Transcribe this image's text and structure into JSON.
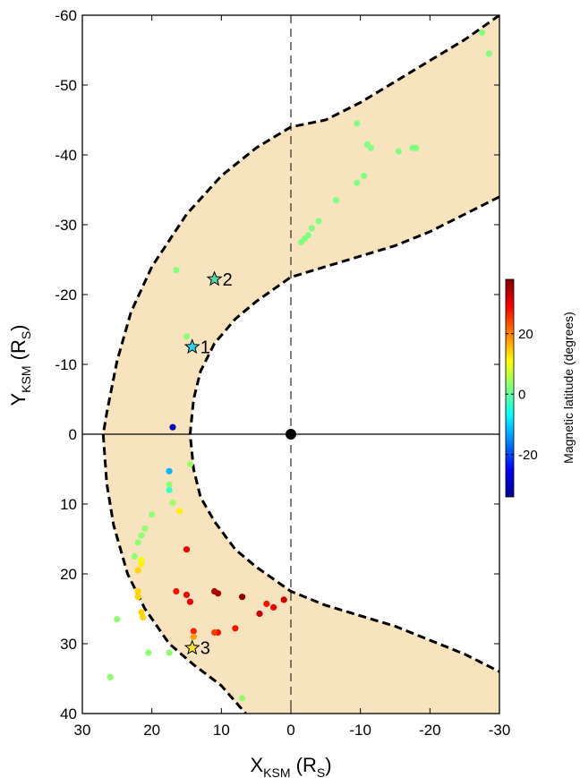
{
  "chart_data": {
    "type": "scatter",
    "x_axis": {
      "label_main": "X",
      "label_sub": "KSM",
      "label_unit_open": " (R",
      "label_unit_sub": "S",
      "label_unit_close": ")",
      "range": [
        30,
        -30
      ],
      "reversed": true,
      "ticks": [
        30,
        20,
        10,
        0,
        -10,
        -20,
        -30
      ]
    },
    "y_axis": {
      "label_main": "Y",
      "label_sub": "KSM",
      "label_unit_open": " (R",
      "label_unit_sub": "S",
      "label_unit_close": ")",
      "range": [
        -60,
        40
      ],
      "reversed": true,
      "ticks": [
        -60,
        -50,
        -40,
        -30,
        -20,
        -10,
        0,
        10,
        20,
        30,
        40
      ]
    },
    "grid": false,
    "reference_lines": {
      "x0_dashed_vertical": true,
      "y0_solid_horizontal": true
    },
    "planet_marker": {
      "x": 0,
      "y": 0,
      "color": "#000000"
    },
    "region_fill_color": "#f8e3bf",
    "boundary_color": "#000000",
    "outer_boundary": [
      [
        -30,
        -60
      ],
      [
        -25,
        -56.5
      ],
      [
        -20,
        -53.5
      ],
      [
        -15,
        -50.5
      ],
      [
        -10,
        -47.5
      ],
      [
        -5,
        -45
      ],
      [
        0,
        -44
      ],
      [
        5,
        -41
      ],
      [
        10,
        -37
      ],
      [
        15,
        -31.5
      ],
      [
        20,
        -24
      ],
      [
        23,
        -17.5
      ],
      [
        25,
        -10.5
      ],
      [
        26.5,
        -3
      ],
      [
        27,
        0
      ],
      [
        26.5,
        7
      ],
      [
        25.5,
        13
      ],
      [
        23.5,
        20
      ],
      [
        21,
        25
      ],
      [
        17.5,
        30
      ],
      [
        14,
        33
      ],
      [
        10,
        36
      ],
      [
        6.5,
        40
      ]
    ],
    "inner_boundary": [
      [
        -30,
        -34
      ],
      [
        -25,
        -31.5
      ],
      [
        -20,
        -29
      ],
      [
        -15,
        -27
      ],
      [
        -10,
        -25.5
      ],
      [
        -5,
        -24
      ],
      [
        0,
        -22.5
      ],
      [
        5,
        -19
      ],
      [
        8,
        -16.5
      ],
      [
        11,
        -13
      ],
      [
        13,
        -9
      ],
      [
        14,
        -5
      ],
      [
        14.5,
        0
      ],
      [
        14,
        5
      ],
      [
        13,
        9
      ],
      [
        11,
        12.5
      ],
      [
        8,
        16.5
      ],
      [
        5,
        19
      ],
      [
        0,
        22.5
      ],
      [
        -5,
        24.5
      ],
      [
        -10,
        26
      ],
      [
        -15,
        27.5
      ],
      [
        -20,
        29.5
      ],
      [
        -25,
        31.5
      ],
      [
        -30,
        34
      ]
    ],
    "points": [
      {
        "x": -27.5,
        "y": -57.5,
        "lat": 2
      },
      {
        "x": -28.5,
        "y": -54.5,
        "lat": 2
      },
      {
        "x": -9.5,
        "y": -44.5,
        "lat": 2
      },
      {
        "x": -11,
        "y": -41.5,
        "lat": 2
      },
      {
        "x": -11.5,
        "y": -41,
        "lat": 2
      },
      {
        "x": -15.5,
        "y": -40.5,
        "lat": 2
      },
      {
        "x": -17.5,
        "y": -41,
        "lat": 2
      },
      {
        "x": -18,
        "y": -41,
        "lat": 2
      },
      {
        "x": -10.5,
        "y": -37,
        "lat": 2
      },
      {
        "x": -9.5,
        "y": -36,
        "lat": 2
      },
      {
        "x": -6.5,
        "y": -33.5,
        "lat": 2
      },
      {
        "x": -4,
        "y": -30.5,
        "lat": 2
      },
      {
        "x": -3,
        "y": -29.5,
        "lat": 2
      },
      {
        "x": -2.5,
        "y": -28.5,
        "lat": 2
      },
      {
        "x": -2,
        "y": -28,
        "lat": 2
      },
      {
        "x": -1.5,
        "y": -27.5,
        "lat": 2
      },
      {
        "x": 16.5,
        "y": -23.5,
        "lat": 2
      },
      {
        "x": 15,
        "y": -14,
        "lat": 3
      },
      {
        "x": 17,
        "y": -1,
        "lat": -30
      },
      {
        "x": 14.5,
        "y": 4.3,
        "lat": 4
      },
      {
        "x": 17.5,
        "y": 5.3,
        "lat": -12
      },
      {
        "x": 17.5,
        "y": 7.2,
        "lat": 3
      },
      {
        "x": 17.5,
        "y": 8,
        "lat": -3
      },
      {
        "x": 17,
        "y": 9.8,
        "lat": 4
      },
      {
        "x": 16,
        "y": 11,
        "lat": 12
      },
      {
        "x": 20,
        "y": 11.5,
        "lat": 3
      },
      {
        "x": 21,
        "y": 13.5,
        "lat": 3
      },
      {
        "x": 21.5,
        "y": 14.5,
        "lat": 3
      },
      {
        "x": 22,
        "y": 15.5,
        "lat": 3
      },
      {
        "x": 22.5,
        "y": 17.5,
        "lat": 3
      },
      {
        "x": 21.5,
        "y": 18,
        "lat": 10
      },
      {
        "x": 21.5,
        "y": 18.6,
        "lat": 12
      },
      {
        "x": 22,
        "y": 19.5,
        "lat": 14
      },
      {
        "x": 22,
        "y": 22.5,
        "lat": 14
      },
      {
        "x": 22,
        "y": 23.3,
        "lat": 14
      },
      {
        "x": 21.5,
        "y": 25.5,
        "lat": 14
      },
      {
        "x": 21.3,
        "y": 26.2,
        "lat": 14
      },
      {
        "x": 25,
        "y": 26.5,
        "lat": 3
      },
      {
        "x": 20.5,
        "y": 31.3,
        "lat": 3
      },
      {
        "x": 17.5,
        "y": 31.3,
        "lat": 3
      },
      {
        "x": 26,
        "y": 34.8,
        "lat": 3
      },
      {
        "x": 7,
        "y": 37.8,
        "lat": 3
      },
      {
        "x": 15,
        "y": 16.5,
        "lat": 30
      },
      {
        "x": 16.5,
        "y": 22.5,
        "lat": 28
      },
      {
        "x": 15,
        "y": 23,
        "lat": 30
      },
      {
        "x": 14.5,
        "y": 24,
        "lat": 30
      },
      {
        "x": 11,
        "y": 22.5,
        "lat": 35
      },
      {
        "x": 10.5,
        "y": 22.8,
        "lat": 35
      },
      {
        "x": 7,
        "y": 23.3,
        "lat": 37
      },
      {
        "x": 1,
        "y": 23.7,
        "lat": 33
      },
      {
        "x": 3.5,
        "y": 24.3,
        "lat": 28
      },
      {
        "x": 2.5,
        "y": 24.8,
        "lat": 30
      },
      {
        "x": 4.5,
        "y": 25.7,
        "lat": 33
      },
      {
        "x": 14,
        "y": 28.2,
        "lat": 27
      },
      {
        "x": 10.5,
        "y": 28.4,
        "lat": 28
      },
      {
        "x": 11,
        "y": 28.4,
        "lat": 25
      },
      {
        "x": 8,
        "y": 27.8,
        "lat": 28
      },
      {
        "x": 14,
        "y": 29,
        "lat": 18
      }
    ],
    "stars": [
      {
        "label": "1",
        "x": 14.2,
        "y": -12.5,
        "color": "#2fd2e8"
      },
      {
        "label": "2",
        "x": 11,
        "y": -22.2,
        "color": "#58d6a8"
      },
      {
        "label": "3",
        "x": 14.2,
        "y": 30.6,
        "color": "#f1e13c"
      }
    ],
    "colorbar": {
      "label": "Magnetic latitude (degrees)",
      "range": [
        -34,
        38
      ],
      "ticks": [
        20,
        0,
        -20
      ],
      "tick_labels": [
        "20",
        "0",
        "-20"
      ],
      "colormap": "jet"
    }
  }
}
